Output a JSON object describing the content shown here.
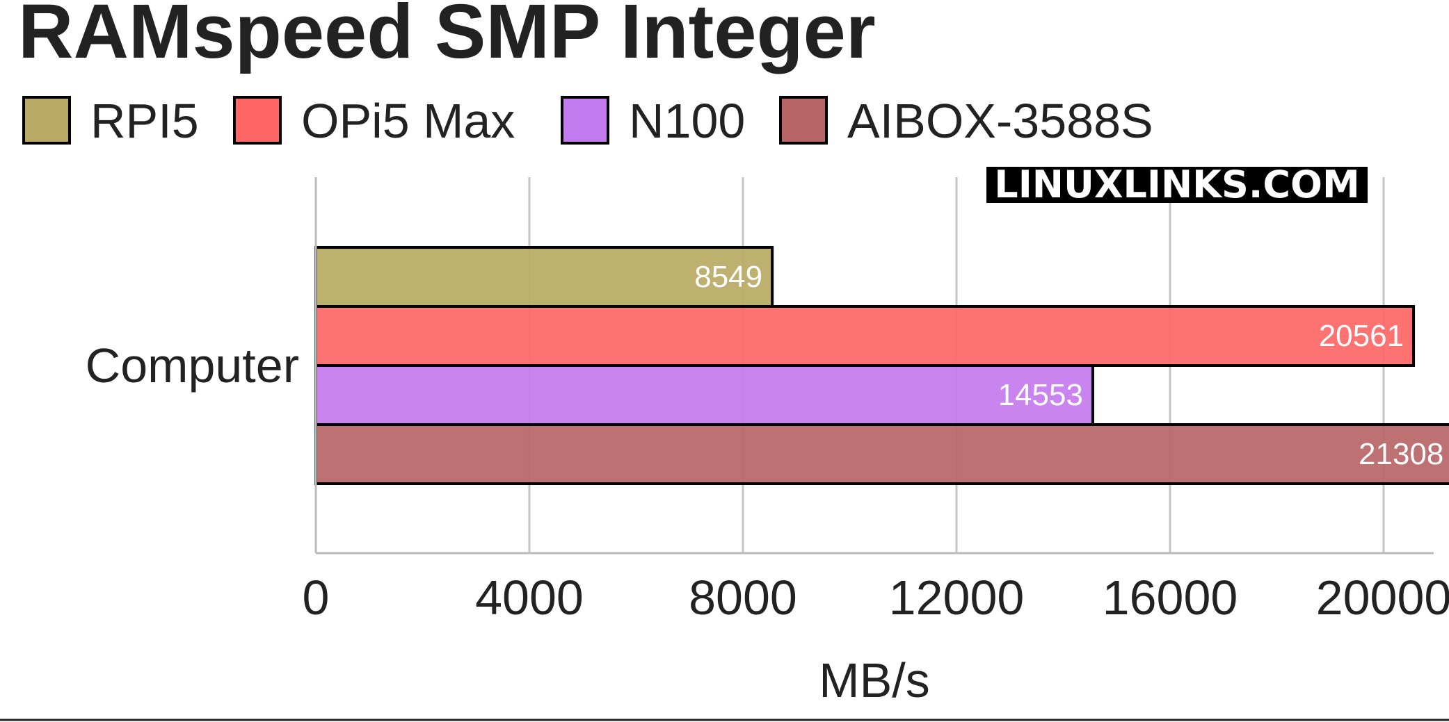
{
  "chart_data": {
    "type": "bar",
    "orientation": "horizontal",
    "title": "RAMspeed SMP Integer",
    "watermark": "LINUXLINKS.COM",
    "categories": [
      "Computer"
    ],
    "series": [
      {
        "name": "RPI5",
        "values": [
          8549
        ],
        "color": "#b8aa64"
      },
      {
        "name": "OPi5 Max",
        "values": [
          20561
        ],
        "color": "#ff6666"
      },
      {
        "name": "N100",
        "values": [
          14553
        ],
        "color": "#c47aef"
      },
      {
        "name": "AIBOX-3588S",
        "values": [
          21308
        ],
        "color": "#b76566"
      }
    ],
    "xlabel": "MB/s",
    "ylabel": "",
    "xlim": [
      0,
      21800
    ],
    "xticks": [
      "0",
      "4000",
      "8000",
      "12000",
      "16000",
      "20000"
    ],
    "grid": true,
    "legend": "top-left"
  }
}
